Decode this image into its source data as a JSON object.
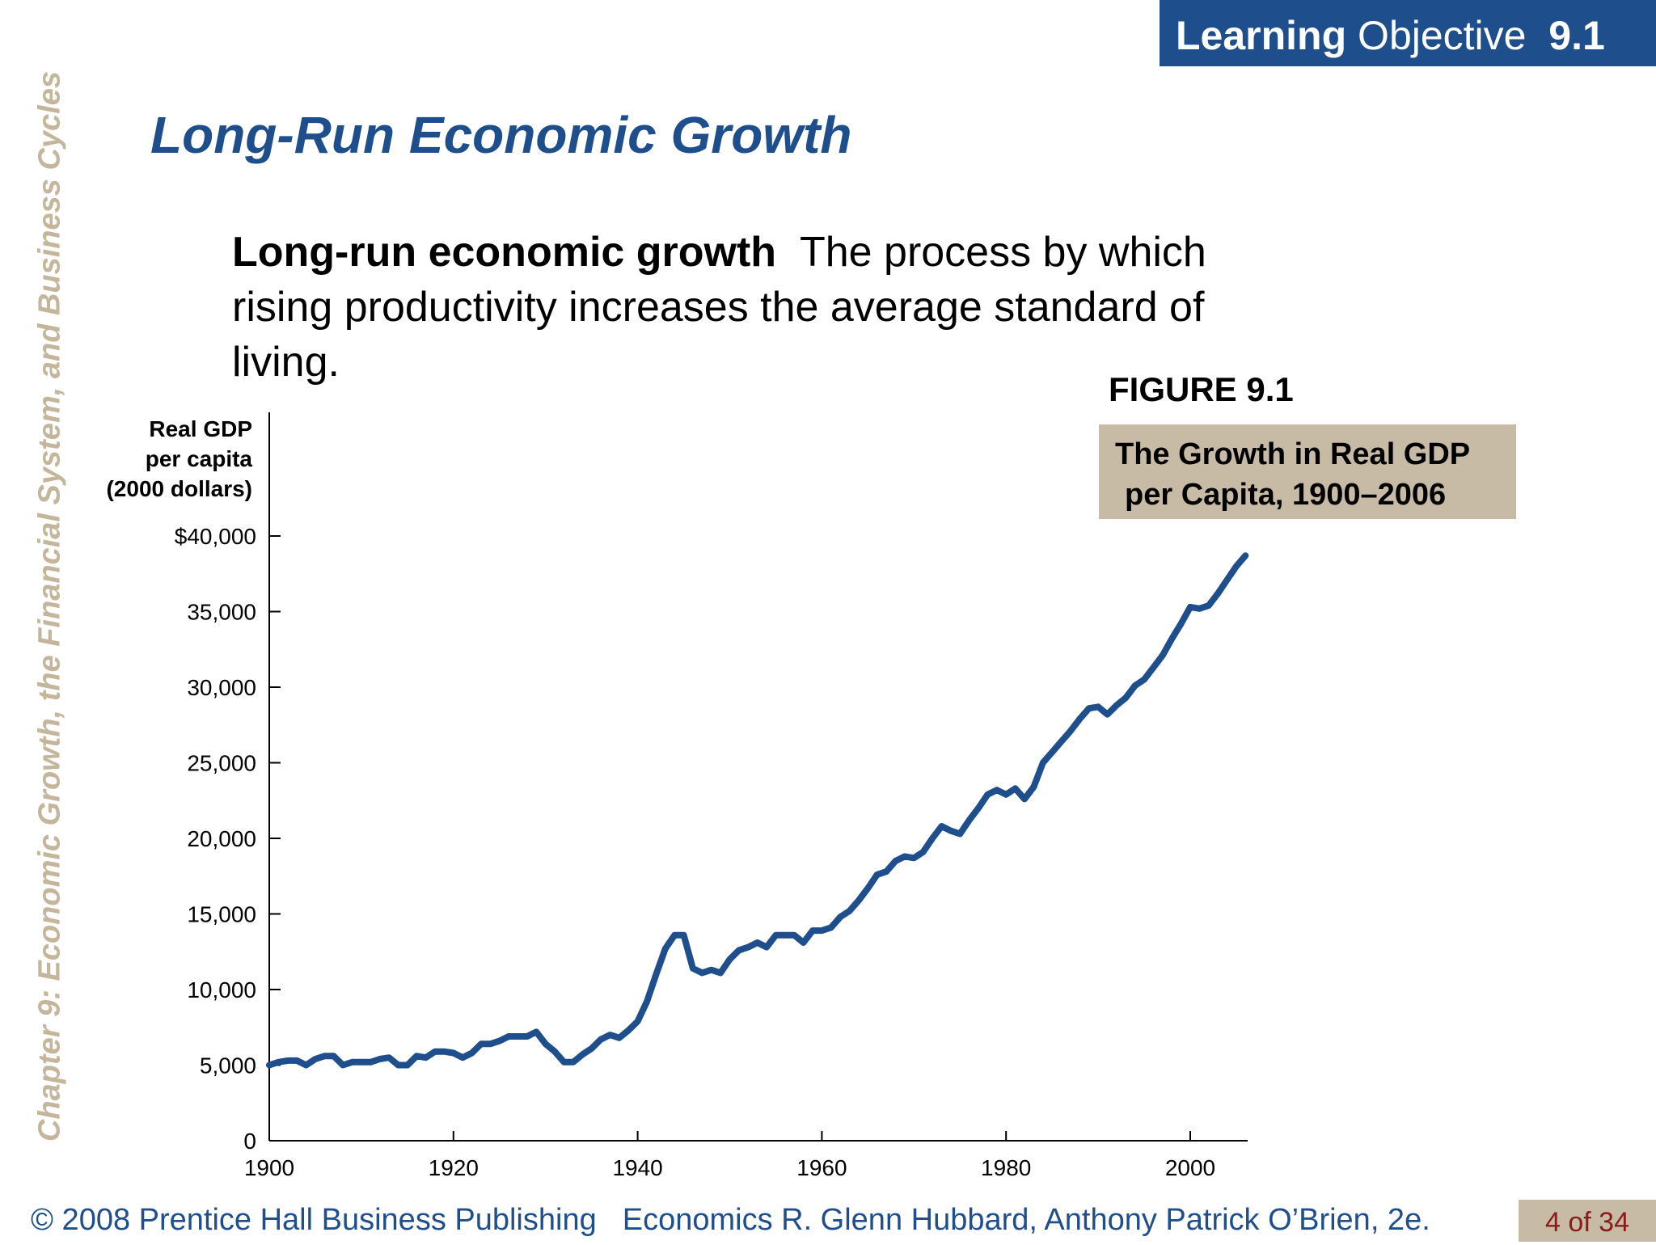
{
  "header": {
    "badge_bold": "Learning",
    "badge_regular": "Objective",
    "badge_number": "9.1"
  },
  "sidebar": {
    "chapter_text": "Chapter 9:  Economic Growth, the Financial System, and Business Cycles"
  },
  "slide": {
    "title": "Long-Run Economic Growth",
    "definition_term": "Long-run economic growth",
    "definition_text": "The process by which rising productivity increases the average standard of living.",
    "figure_label": "FIGURE 9.1",
    "caption_line1": "The Growth in Real GDP",
    "caption_line2": "per Capita, 1900–2006"
  },
  "footer": {
    "copyright": "© 2008 Prentice Hall Business Publishing",
    "book": "Economics  R. Glenn Hubbard, Anthony Patrick O’Brien, 2e.",
    "page": "4 of 34"
  },
  "colors": {
    "accent": "#1f4e8c",
    "caption_bg": "#c7bba6",
    "sidebar_text": "#c4b69b",
    "page_num": "#8b1a1a"
  },
  "chart_data": {
    "type": "line",
    "ylabel_lines": [
      "Real GDP",
      "per capita",
      "(2000 dollars)"
    ],
    "xlim": [
      1900,
      2006
    ],
    "ylim": [
      0,
      40000
    ],
    "x_ticks": [
      1900,
      1920,
      1940,
      1960,
      1980,
      2000
    ],
    "x_tick_labels": [
      "1900",
      "1920",
      "1940",
      "1960",
      "1980",
      "2000"
    ],
    "y_ticks": [
      0,
      5000,
      10000,
      15000,
      20000,
      25000,
      30000,
      35000,
      40000
    ],
    "y_tick_labels": [
      "0",
      "5,000",
      "10,000",
      "15,000",
      "20,000",
      "25,000",
      "30,000",
      "35,000",
      "$40,000"
    ],
    "series": [
      {
        "color": "#1f4e8c",
        "x": [
          1900,
          1901,
          1902,
          1903,
          1904,
          1905,
          1906,
          1907,
          1908,
          1909,
          1910,
          1911,
          1912,
          1913,
          1914,
          1915,
          1916,
          1917,
          1918,
          1919,
          1920,
          1921,
          1922,
          1923,
          1924,
          1925,
          1926,
          1927,
          1928,
          1929,
          1930,
          1931,
          1932,
          1933,
          1934,
          1935,
          1936,
          1937,
          1938,
          1939,
          1940,
          1941,
          1942,
          1943,
          1944,
          1945,
          1946,
          1947,
          1948,
          1949,
          1950,
          1951,
          1952,
          1953,
          1954,
          1955,
          1956,
          1957,
          1958,
          1959,
          1960,
          1961,
          1962,
          1963,
          1964,
          1965,
          1966,
          1967,
          1968,
          1969,
          1970,
          1971,
          1972,
          1973,
          1974,
          1975,
          1976,
          1977,
          1978,
          1979,
          1980,
          1981,
          1982,
          1983,
          1984,
          1985,
          1986,
          1987,
          1988,
          1989,
          1990,
          1991,
          1992,
          1993,
          1994,
          1995,
          1996,
          1997,
          1998,
          1999,
          2000,
          2001,
          2002,
          2003,
          2004,
          2005,
          2006
        ],
        "values": [
          5000,
          5200,
          5300,
          5300,
          5000,
          5400,
          5600,
          5600,
          5000,
          5200,
          5200,
          5200,
          5400,
          5500,
          5000,
          5000,
          5600,
          5500,
          5900,
          5900,
          5800,
          5500,
          5800,
          6400,
          6400,
          6600,
          6900,
          6900,
          6900,
          7200,
          6400,
          5900,
          5200,
          5200,
          5700,
          6100,
          6700,
          7000,
          6800,
          7300,
          7900,
          9200,
          11000,
          12700,
          13600,
          13600,
          11400,
          11100,
          11300,
          11100,
          12000,
          12600,
          12800,
          13100,
          12800,
          13600,
          13600,
          13600,
          13100,
          13900,
          13900,
          14100,
          14800,
          15200,
          15900,
          16700,
          17600,
          17800,
          18500,
          18800,
          18700,
          19100,
          20000,
          20800,
          20500,
          20300,
          21200,
          22000,
          22900,
          23200,
          22900,
          23300,
          22600,
          23400,
          25000,
          25700,
          26400,
          27100,
          27900,
          28600,
          28700,
          28200,
          28800,
          29300,
          30100,
          30500,
          31300,
          32100,
          33200,
          34200,
          35300,
          35200,
          35400,
          36200,
          37100,
          38000,
          38700
        ]
      }
    ]
  }
}
